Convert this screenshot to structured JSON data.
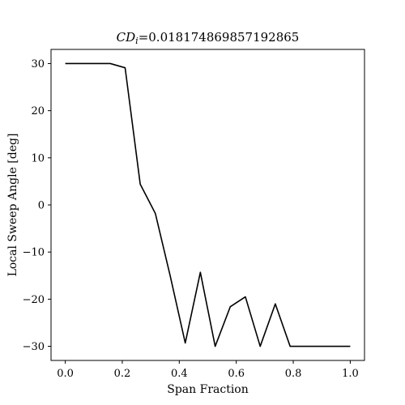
{
  "chart_data": {
    "type": "line",
    "title_symbol": "CD",
    "title_subscript": "i",
    "title_value": "=0.018174869857192865",
    "xlabel": "Span Fraction",
    "ylabel": "Local Sweep Angle [deg]",
    "xlim": [
      -0.05,
      1.05
    ],
    "ylim": [
      -33,
      33
    ],
    "xticks": [
      0.0,
      0.2,
      0.4,
      0.6,
      0.8,
      1.0
    ],
    "xtick_labels": [
      "0.0",
      "0.2",
      "0.4",
      "0.6",
      "0.8",
      "1.0"
    ],
    "yticks": [
      30,
      20,
      10,
      0,
      -10,
      -20,
      -30
    ],
    "ytick_labels": [
      "30",
      "20",
      "10",
      "0",
      "−10",
      "−20",
      "−30"
    ],
    "grid": false,
    "series": [
      {
        "color": "#000000",
        "x": [
          0.0,
          0.052,
          0.105,
          0.158,
          0.21,
          0.263,
          0.316,
          0.368,
          0.421,
          0.474,
          0.526,
          0.579,
          0.632,
          0.684,
          0.737,
          0.789,
          0.842,
          0.895,
          0.947,
          1.0
        ],
        "y": [
          30,
          30,
          30,
          30,
          29.1,
          4.4,
          -1.8,
          -15,
          -29.3,
          -14.3,
          -30,
          -21.6,
          -19.5,
          -30,
          -21,
          -30,
          -30,
          -30,
          -30,
          -30
        ]
      }
    ]
  }
}
